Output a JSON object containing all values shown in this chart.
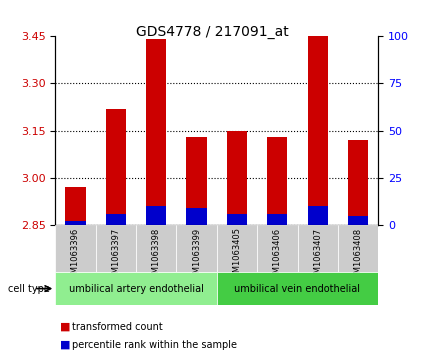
{
  "title": "GDS4778 / 217091_at",
  "samples": [
    "GSM1063396",
    "GSM1063397",
    "GSM1063398",
    "GSM1063399",
    "GSM1063405",
    "GSM1063406",
    "GSM1063407",
    "GSM1063408"
  ],
  "red_values": [
    2.97,
    3.22,
    3.44,
    3.13,
    3.15,
    3.13,
    3.45,
    3.12
  ],
  "blue_values": [
    0.02,
    0.06,
    0.1,
    0.09,
    0.06,
    0.06,
    0.1,
    0.05
  ],
  "ylim_left": [
    2.85,
    3.45
  ],
  "yticks_left": [
    2.85,
    3.0,
    3.15,
    3.3,
    3.45
  ],
  "yticks_right": [
    0,
    25,
    50,
    75,
    100
  ],
  "ylabel_right_color": "#0000ff",
  "bar_color_red": "#cc0000",
  "bar_color_blue": "#0000cc",
  "cell_type_groups": [
    {
      "label": "umbilical artery endothelial",
      "samples": [
        "GSM1063396",
        "GSM1063397",
        "GSM1063398",
        "GSM1063399"
      ],
      "color": "#90ee90"
    },
    {
      "label": "umbilical vein endothelial",
      "samples": [
        "GSM1063405",
        "GSM1063406",
        "GSM1063407",
        "GSM1063408"
      ],
      "color": "#44cc44"
    }
  ],
  "grid_color": "#000000",
  "grid_linestyle": "dotted",
  "background_plot": "#ffffff",
  "background_xtick": "#cccccc",
  "bar_width": 0.5,
  "base_value": 2.85
}
